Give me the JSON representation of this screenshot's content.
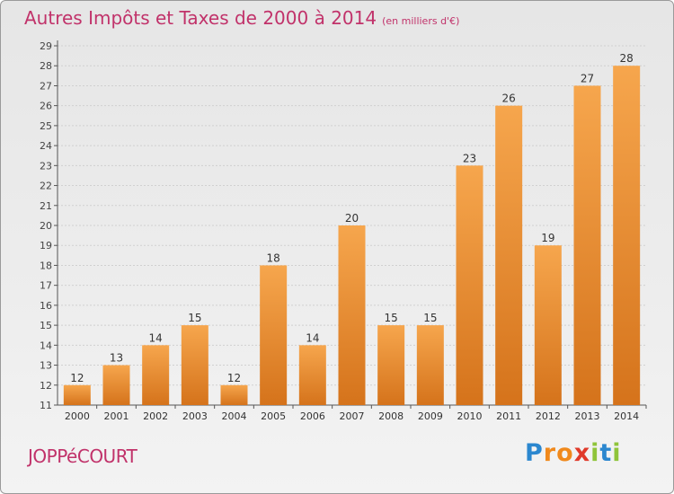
{
  "title": "Autres Impôts et Taxes de 2000 à 2014",
  "subtitle": "(en milliers d'€)",
  "commune": "JOPPéCOURT",
  "logo": {
    "letters": [
      "P",
      "r",
      "o",
      "x",
      "i",
      "t",
      "i"
    ],
    "colors": [
      "#2b87cf",
      "#f0891c",
      "#f0891c",
      "#e03a2a",
      "#8fc43a",
      "#2b87cf",
      "#8fc43a"
    ]
  },
  "colors": {
    "bar_light": "#f6a64d",
    "bar_dark": "#d5731b",
    "title": "#c1326a"
  },
  "chart_data": {
    "type": "bar",
    "categories": [
      "2000",
      "2001",
      "2002",
      "2003",
      "2004",
      "2005",
      "2006",
      "2007",
      "2008",
      "2009",
      "2010",
      "2011",
      "2012",
      "2013",
      "2014"
    ],
    "values": [
      12,
      13,
      14,
      15,
      12,
      18,
      14,
      20,
      15,
      15,
      23,
      26,
      19,
      27,
      28
    ],
    "ylim": [
      11,
      29
    ],
    "yticks": [
      11,
      12,
      13,
      14,
      15,
      16,
      17,
      18,
      19,
      20,
      21,
      22,
      23,
      24,
      25,
      26,
      27,
      28,
      29
    ],
    "grid": true,
    "title": "Autres Impôts et Taxes de 2000 à 2014",
    "xlabel": "",
    "ylabel": ""
  }
}
